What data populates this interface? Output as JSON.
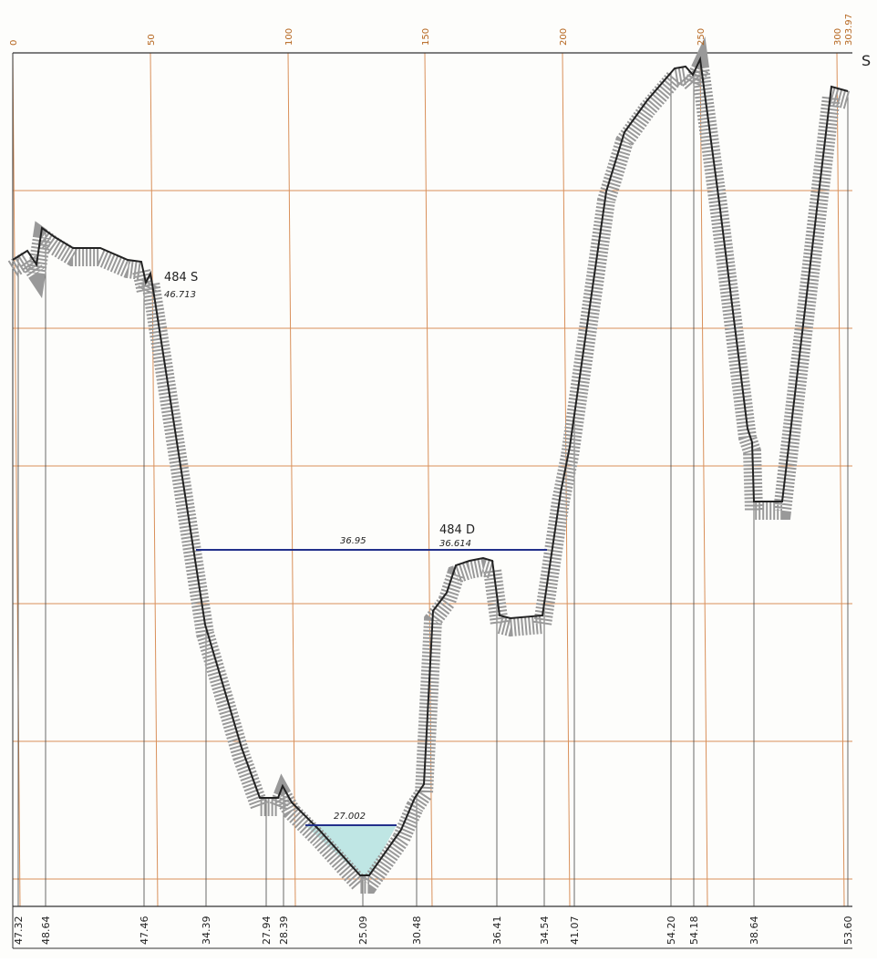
{
  "top_scale": [
    "0",
    "50",
    "100",
    "150",
    "200",
    "250",
    "300",
    "303.97"
  ],
  "side_label": "S",
  "point_s": {
    "name": "484 S",
    "elevation": "46.713"
  },
  "point_d": {
    "name": "484 D",
    "elevation": "36.614",
    "water_level": "36.95"
  },
  "low_water": "27.002",
  "bottom_elevations": [
    "47.32",
    "48.64",
    "47.46",
    "34.39",
    "27.94",
    "28.39",
    "25.09",
    "30.48",
    "36.41",
    "34.54",
    "41.07",
    "54.20",
    "54.18",
    "38.64",
    "53.60"
  ]
}
